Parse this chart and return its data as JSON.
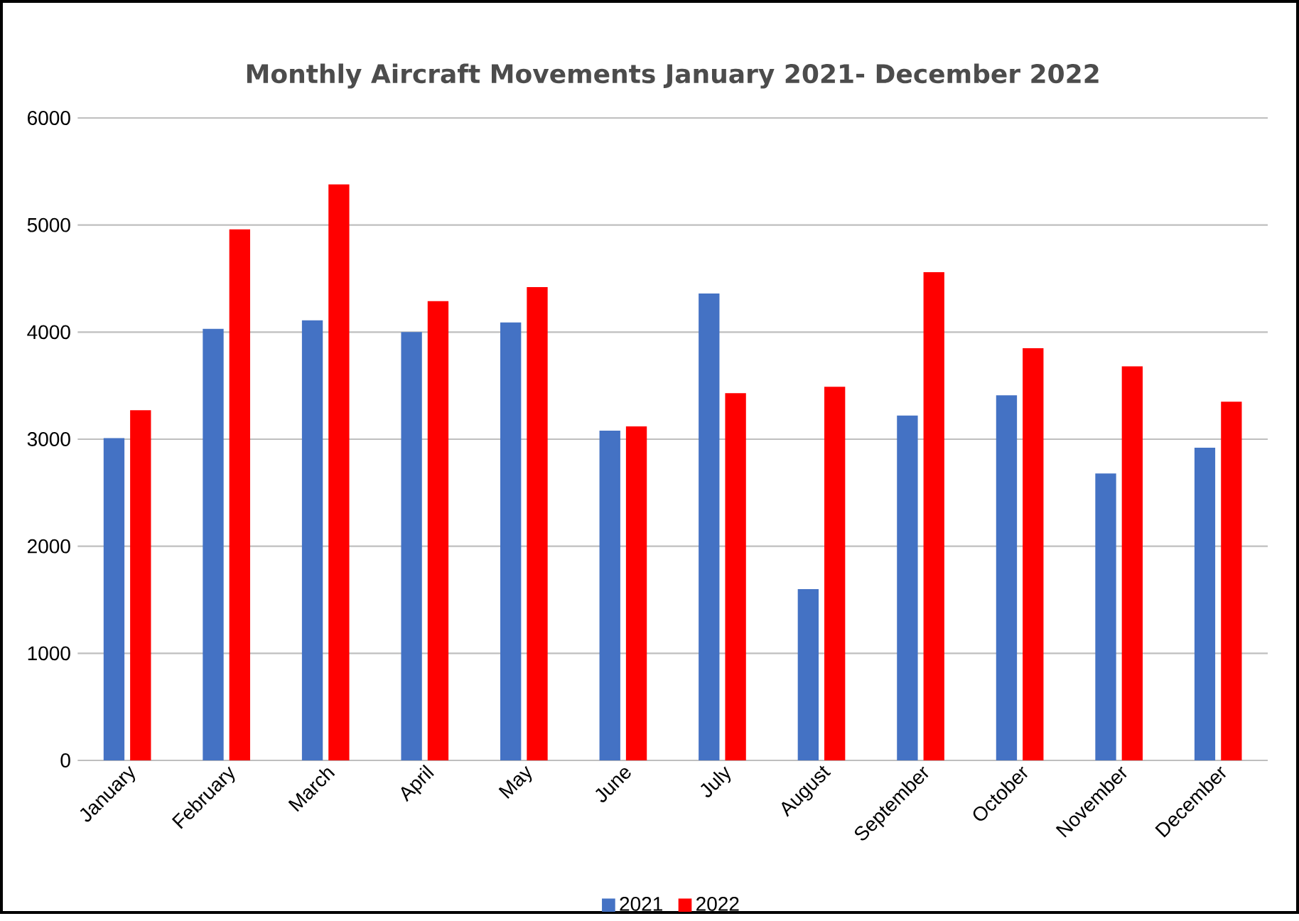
{
  "chart_data": {
    "type": "bar",
    "title": "Monthly Aircraft Movements  January 2021- December 2022",
    "categories": [
      "January",
      "February",
      "March",
      "April",
      "May",
      "June",
      "July",
      "August",
      "September",
      "October",
      "November",
      "December"
    ],
    "series": [
      {
        "name": "2021",
        "color": "#4472c4",
        "values": [
          3010,
          4030,
          4110,
          4000,
          4090,
          3080,
          4360,
          1600,
          3220,
          3410,
          2680,
          2920
        ]
      },
      {
        "name": "2022",
        "color": "#ff0000",
        "values": [
          3270,
          4960,
          5380,
          4290,
          4420,
          3120,
          3430,
          3490,
          4560,
          3850,
          3680,
          3350
        ]
      }
    ],
    "ylim": [
      0,
      6000
    ],
    "yticks": [
      0,
      1000,
      2000,
      3000,
      4000,
      5000,
      6000
    ],
    "grid": "y",
    "legend": "bottom"
  }
}
